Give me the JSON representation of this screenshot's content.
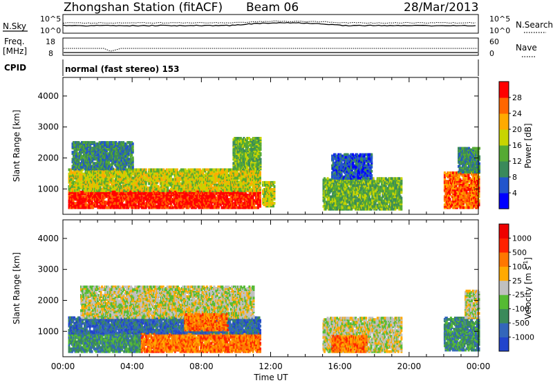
{
  "header": {
    "station": "Zhongshan Station (fitACF)",
    "beam": "Beam 06",
    "date": "28/Mar/2013"
  },
  "summary": {
    "nsky_label": "N.Sky",
    "nsky_ticks": [
      "10^5",
      "10^0"
    ],
    "nsearch_label": "N.Search",
    "nsearch_ticks": [
      "10^5",
      "10^0"
    ],
    "freq_label_line1": "Freq.",
    "freq_label_line2": "[MHz]",
    "freq_ticks": [
      "18",
      "8"
    ],
    "nave_label": "Nave",
    "nave_ticks": [
      "60",
      "0"
    ],
    "cpid_label": "CPID",
    "cpid_value": "normal (fast stereo) 153"
  },
  "chart_data": [
    {
      "type": "heatmap",
      "name": "power",
      "ylabel": "Slant Range [km]",
      "ylim": [
        180,
        4600
      ],
      "yticks": [
        "1000",
        "2000",
        "3000",
        "4000"
      ],
      "xlabel": "",
      "xlim": [
        0,
        24
      ],
      "colorbar": {
        "label": "Power [dB]",
        "ticks": [
          "4",
          "8",
          "12",
          "16",
          "20",
          "24",
          "28"
        ],
        "colors": [
          "#0000ff",
          "#2255cc",
          "#3a8a5a",
          "#55aa33",
          "#c8d400",
          "#ffaa00",
          "#ff6600",
          "#ff0000"
        ]
      },
      "regions": [
        {
          "t0": 0.3,
          "t1": 11.4,
          "r0": 350,
          "r1": 900,
          "level": 7
        },
        {
          "t0": 0.3,
          "t1": 11.4,
          "r0": 900,
          "r1": 1600,
          "level": 4
        },
        {
          "t0": 0.5,
          "t1": 4.0,
          "r0": 1600,
          "r1": 2500,
          "level": 2
        },
        {
          "t0": 9.8,
          "t1": 11.4,
          "r0": 1600,
          "r1": 2600,
          "level": 3
        },
        {
          "t0": 11.5,
          "t1": 12.2,
          "r0": 400,
          "r1": 1200,
          "level": 4
        },
        {
          "t0": 15.0,
          "t1": 19.5,
          "r0": 300,
          "r1": 1300,
          "level": 3
        },
        {
          "t0": 15.5,
          "t1": 17.8,
          "r0": 1300,
          "r1": 2100,
          "level": 1
        },
        {
          "t0": 22.0,
          "t1": 24.0,
          "r0": 350,
          "r1": 1500,
          "level": 6
        },
        {
          "t0": 22.8,
          "t1": 24.0,
          "r0": 1500,
          "r1": 2300,
          "level": 2
        }
      ]
    },
    {
      "type": "heatmap",
      "name": "velocity",
      "ylabel": "Slant Range [km]",
      "ylim": [
        180,
        4600
      ],
      "yticks": [
        "1000",
        "2000",
        "3000",
        "4000"
      ],
      "xlabel": "Time UT",
      "xlim": [
        0,
        24
      ],
      "xticks": [
        "00:00",
        "04:00",
        "08:00",
        "12:00",
        "16:00",
        "20:00",
        "00:00"
      ],
      "colorbar": {
        "label": "Velocity [m s",
        "label_sup": "-1",
        "label_end": "]",
        "ticks": [
          "1000",
          "500",
          "100",
          "25",
          "-25",
          "-100",
          "-500",
          "-1000"
        ],
        "colors": [
          "#2244cc",
          "#3366bb",
          "#3a8a5a",
          "#55bb33",
          "#c0c0c0",
          "#ffaa00",
          "#ff7700",
          "#ff2200",
          "#ee0000"
        ]
      },
      "regions": [
        {
          "t0": 0.3,
          "t1": 4.5,
          "r0": 300,
          "r1": 900,
          "level": 2
        },
        {
          "t0": 4.5,
          "t1": 11.4,
          "r0": 300,
          "r1": 900,
          "level": 6
        },
        {
          "t0": 0.3,
          "t1": 11.4,
          "r0": 900,
          "r1": 1400,
          "level": 1
        },
        {
          "t0": 1.0,
          "t1": 11.0,
          "r0": 1400,
          "r1": 2400,
          "level": 4
        },
        {
          "t0": 7.0,
          "t1": 9.5,
          "r0": 1000,
          "r1": 1500,
          "level": 6
        },
        {
          "t0": 15.0,
          "t1": 19.5,
          "r0": 300,
          "r1": 1400,
          "level": 4
        },
        {
          "t0": 15.5,
          "t1": 17.5,
          "r0": 300,
          "r1": 800,
          "level": 6
        },
        {
          "t0": 22.0,
          "t1": 24.0,
          "r0": 350,
          "r1": 1400,
          "level": 2
        },
        {
          "t0": 23.2,
          "t1": 24.0,
          "r0": 1400,
          "r1": 2300,
          "level": 4
        }
      ]
    }
  ]
}
